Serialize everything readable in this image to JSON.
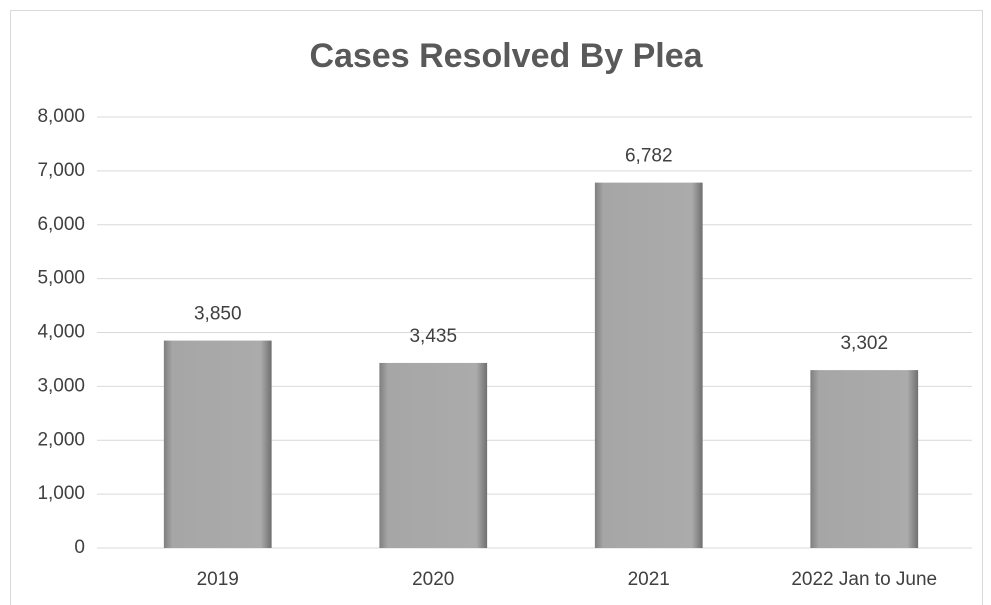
{
  "chart_data": {
    "type": "bar",
    "title": "Cases Resolved By Plea",
    "categories": [
      "2019",
      "2020",
      "2021",
      "2022  Jan to June"
    ],
    "values": [
      3850,
      3435,
      6782,
      3302
    ],
    "value_labels": [
      "3,850",
      "3,435",
      "6,782",
      "3,302"
    ],
    "color": "#a6a6a6",
    "ylim": [
      0,
      8000
    ],
    "yticks": [
      0,
      {
        "value": 1000,
        "label": "1,000"
      },
      {
        "value": 2000,
        "label": "2,000"
      },
      {
        "value": 3000,
        "label": "3,000"
      },
      {
        "value": 4000,
        "label": "4,000"
      },
      {
        "value": 5000,
        "label": "5,000"
      },
      {
        "value": 6000,
        "label": "6,000"
      },
      {
        "value": 7000,
        "label": "7,000"
      },
      {
        "value": 8000,
        "label": "8,000"
      }
    ],
    "grid": true
  }
}
